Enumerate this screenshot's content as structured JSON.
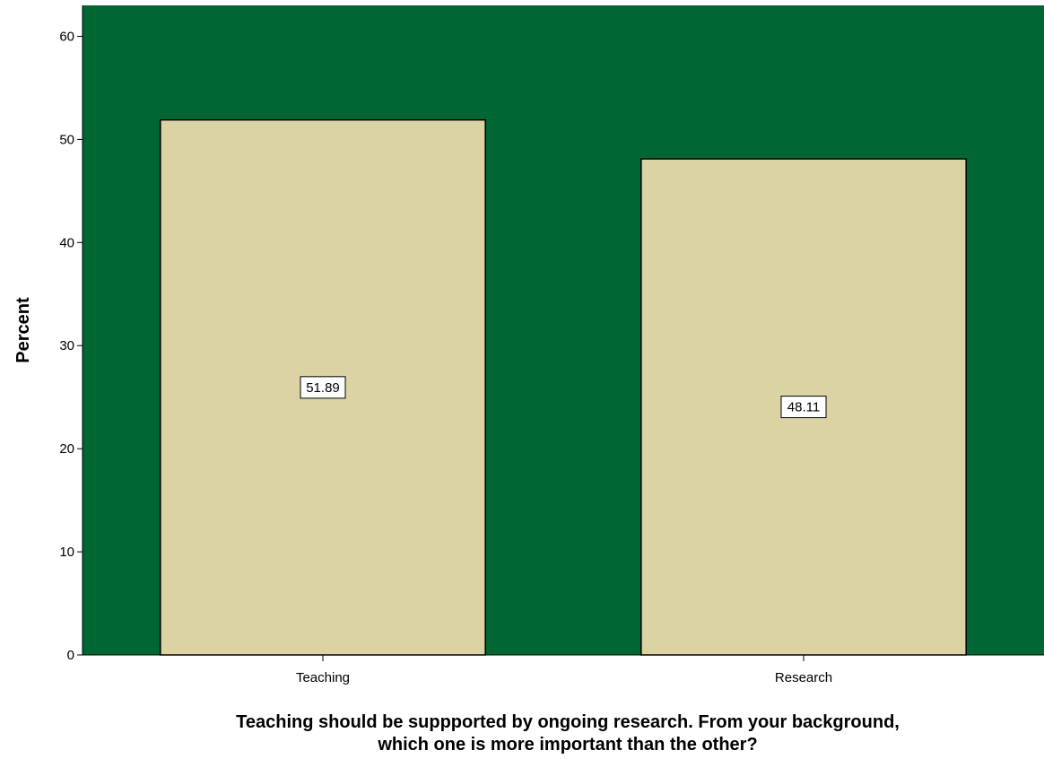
{
  "chart_data": {
    "type": "bar",
    "categories": [
      "Teaching",
      "Research"
    ],
    "values": [
      51.89,
      48.11
    ],
    "data_labels": [
      "51.89",
      "48.11"
    ],
    "xlabel_lines": [
      "Teaching should be suppported by ongoing research. From your background,",
      "which one is more important than the other?"
    ],
    "ylabel": "Percent",
    "ylim": [
      0,
      63
    ],
    "yticks": [
      0,
      10,
      20,
      30,
      40,
      50,
      60
    ],
    "grid": false,
    "colors": {
      "plot_background": "#006633",
      "bar_fill": "#dbd3a4",
      "bar_stroke": "#000000"
    }
  }
}
